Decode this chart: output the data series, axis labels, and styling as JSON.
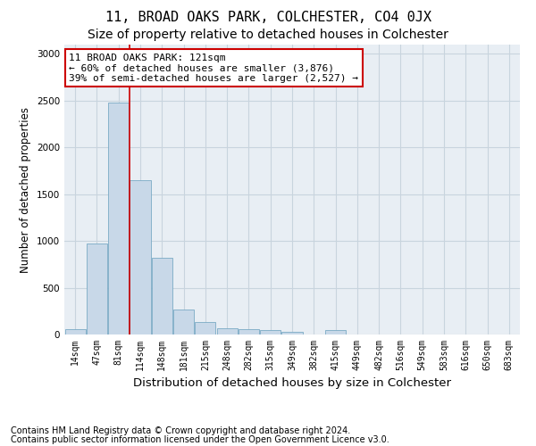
{
  "title": "11, BROAD OAKS PARK, COLCHESTER, CO4 0JX",
  "subtitle": "Size of property relative to detached houses in Colchester",
  "xlabel": "Distribution of detached houses by size in Colchester",
  "ylabel": "Number of detached properties",
  "footnote1": "Contains HM Land Registry data © Crown copyright and database right 2024.",
  "footnote2": "Contains public sector information licensed under the Open Government Licence v3.0.",
  "annotation_line1": "11 BROAD OAKS PARK: 121sqm",
  "annotation_line2": "← 60% of detached houses are smaller (3,876)",
  "annotation_line3": "39% of semi-detached houses are larger (2,527) →",
  "bar_labels": [
    "14sqm",
    "47sqm",
    "81sqm",
    "114sqm",
    "148sqm",
    "181sqm",
    "215sqm",
    "248sqm",
    "282sqm",
    "315sqm",
    "349sqm",
    "382sqm",
    "415sqm",
    "449sqm",
    "482sqm",
    "516sqm",
    "549sqm",
    "583sqm",
    "616sqm",
    "650sqm",
    "683sqm"
  ],
  "bar_values": [
    60,
    975,
    2480,
    1650,
    825,
    270,
    130,
    65,
    55,
    45,
    30,
    0,
    50,
    0,
    0,
    0,
    0,
    0,
    0,
    0,
    0
  ],
  "bar_color": "#c8d8e8",
  "bar_edge_color": "#7aaac5",
  "red_line_color": "#cc0000",
  "grid_color": "#c8d4de",
  "bg_color": "#e8eef4",
  "ylim": [
    0,
    3100
  ],
  "yticks": [
    0,
    500,
    1000,
    1500,
    2000,
    2500,
    3000
  ],
  "title_fontsize": 11,
  "subtitle_fontsize": 10,
  "xlabel_fontsize": 9.5,
  "ylabel_fontsize": 8.5,
  "tick_fontsize": 7,
  "annotation_fontsize": 8,
  "footnote_fontsize": 7
}
